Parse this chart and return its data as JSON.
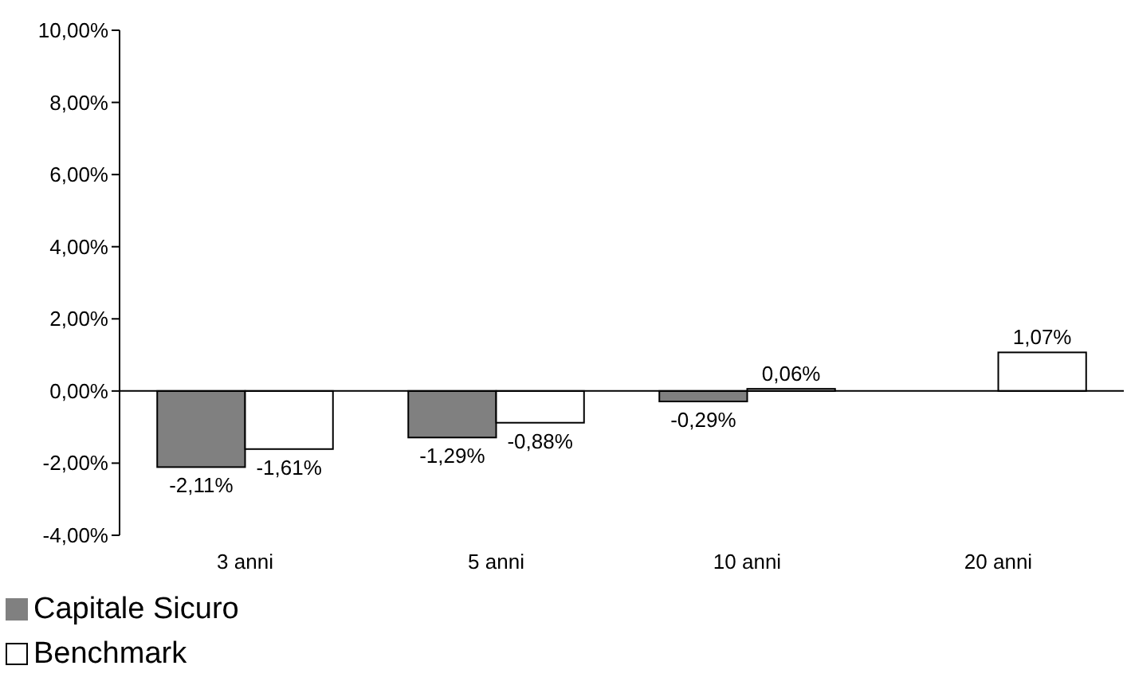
{
  "chart_data": {
    "type": "bar",
    "categories": [
      "3 anni",
      "5 anni",
      "10 anni",
      "20 anni"
    ],
    "series": [
      {
        "name": "Capitale Sicuro",
        "color": "#808080",
        "values": [
          -2.11,
          -1.29,
          -0.29,
          null
        ],
        "value_labels": [
          "-2,11%",
          "-1,29%",
          "-0,29%",
          null
        ]
      },
      {
        "name": "Benchmark",
        "color": "#ffffff",
        "values": [
          -1.61,
          -0.88,
          0.06,
          1.07
        ],
        "value_labels": [
          "-1,61%",
          "-0,88%",
          "0,06%",
          "1,07%"
        ]
      }
    ],
    "ylim": [
      -4,
      10
    ],
    "yticks": [
      {
        "value": -4,
        "label": "-4,00%"
      },
      {
        "value": -2,
        "label": "-2,00%"
      },
      {
        "value": 0,
        "label": "0,00%"
      },
      {
        "value": 2,
        "label": "2,00%"
      },
      {
        "value": 4,
        "label": "4,00%"
      },
      {
        "value": 6,
        "label": "6,00%"
      },
      {
        "value": 8,
        "label": "8,00%"
      },
      {
        "value": 10,
        "label": "10,00%"
      }
    ],
    "legend": "bottom"
  }
}
